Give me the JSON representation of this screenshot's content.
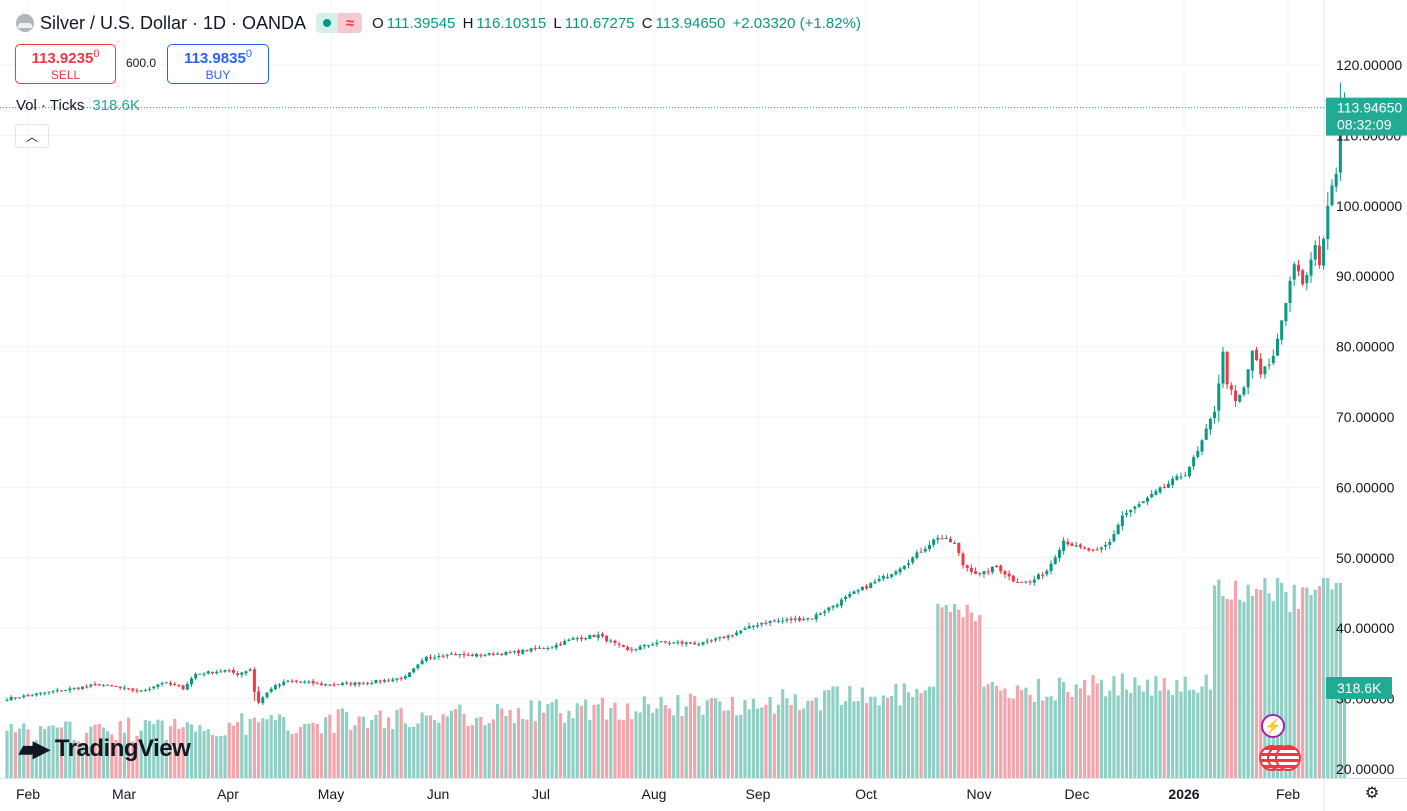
{
  "header": {
    "symbol_title": "Silver / U.S. Dollar · 1D · OANDA",
    "symbol_icon": "silver-cloud-icon",
    "market_status_icon": "market-open-dot-icon",
    "data_feed_icon": "wave-icon",
    "ohlc": {
      "o_label": "O",
      "o": "111.39545",
      "h_label": "H",
      "h": "116.10315",
      "l_label": "L",
      "l": "110.67275",
      "c_label": "C",
      "c": "113.94650",
      "change": "+2.03320 (+1.82%)"
    }
  },
  "trade": {
    "sell_price": "113.9235",
    "sell_sup": "0",
    "sell_label": "SELL",
    "buy_price": "113.9835",
    "buy_sup": "0",
    "buy_label": "BUY",
    "spread": "600.0"
  },
  "volume_legend": {
    "label": "Vol · Ticks",
    "value": "318.6K"
  },
  "collapse_icon": "chevron-up-icon",
  "logo_text": "TradingView",
  "price_axis": {
    "ticks": [
      "120.00000",
      "110.00000",
      "100.00000",
      "90.00000",
      "80.00000",
      "70.00000",
      "60.00000",
      "50.00000",
      "40.00000",
      "30.00000",
      "20.00000"
    ],
    "tick_values": [
      120,
      110,
      100,
      90,
      80,
      70,
      60,
      50,
      40,
      30,
      20
    ],
    "last_price": "113.94650",
    "countdown": "08:32:09",
    "volume_badge": "318.6K"
  },
  "time_axis": {
    "labels": [
      "Feb",
      "Mar",
      "Apr",
      "May",
      "Jun",
      "Jul",
      "Aug",
      "Sep",
      "Oct",
      "Nov",
      "Dec",
      "2026",
      "Feb"
    ],
    "bold": [
      false,
      false,
      false,
      false,
      false,
      false,
      false,
      false,
      false,
      false,
      false,
      true,
      false
    ]
  },
  "colors": {
    "up": "#089981",
    "down": "#f23645",
    "vol_up": "#8fcfc4",
    "vol_down": "#f4a4ab",
    "grid": "#f0f3fa",
    "badge": "#22ab94"
  },
  "chart_data": {
    "type": "candlestick",
    "title": "Silver / U.S. Dollar · 1D · OANDA",
    "ylim": [
      20,
      122
    ],
    "keypoints": [
      {
        "t": 0,
        "close": 30.0
      },
      {
        "t": 22,
        "close": 32.0
      },
      {
        "t": 32,
        "close": 31.0
      },
      {
        "t": 37,
        "close": 32.3
      },
      {
        "t": 42,
        "close": 31.5
      },
      {
        "t": 45,
        "close": 33.5
      },
      {
        "t": 52,
        "close": 34.0
      },
      {
        "t": 55,
        "close": 33.5
      },
      {
        "t": 58,
        "close": 34.2
      },
      {
        "t": 59,
        "close": 31.0
      },
      {
        "t": 60,
        "close": 29.5
      },
      {
        "t": 63,
        "close": 31.5
      },
      {
        "t": 67,
        "close": 32.5
      },
      {
        "t": 73,
        "close": 32.2
      },
      {
        "t": 75,
        "close": 32.0
      },
      {
        "t": 85,
        "close": 32.2
      },
      {
        "t": 95,
        "close": 33.0
      },
      {
        "t": 100,
        "close": 35.8
      },
      {
        "t": 105,
        "close": 36.4
      },
      {
        "t": 110,
        "close": 36.1
      },
      {
        "t": 120,
        "close": 36.5
      },
      {
        "t": 130,
        "close": 37.4
      },
      {
        "t": 135,
        "close": 38.5
      },
      {
        "t": 141,
        "close": 39.0
      },
      {
        "t": 148,
        "close": 36.8
      },
      {
        "t": 155,
        "close": 38.0
      },
      {
        "t": 166,
        "close": 37.8
      },
      {
        "t": 172,
        "close": 38.9
      },
      {
        "t": 180,
        "close": 40.8
      },
      {
        "t": 187,
        "close": 41.2
      },
      {
        "t": 192,
        "close": 41.5
      },
      {
        "t": 197,
        "close": 43.2
      },
      {
        "t": 202,
        "close": 45.0
      },
      {
        "t": 210,
        "close": 47.5
      },
      {
        "t": 215,
        "close": 49.5
      },
      {
        "t": 222,
        "close": 53.0
      },
      {
        "t": 226,
        "close": 52.0
      },
      {
        "t": 228,
        "close": 49.0
      },
      {
        "t": 232,
        "close": 47.5
      },
      {
        "t": 236,
        "close": 48.8
      },
      {
        "t": 240,
        "close": 46.8
      },
      {
        "t": 244,
        "close": 46.5
      },
      {
        "t": 248,
        "close": 48.2
      },
      {
        "t": 252,
        "close": 52.5
      },
      {
        "t": 255,
        "close": 51.5
      },
      {
        "t": 260,
        "close": 50.8
      },
      {
        "t": 263,
        "close": 52.2
      },
      {
        "t": 266,
        "close": 56.0
      },
      {
        "t": 270,
        "close": 57.5
      },
      {
        "t": 273,
        "close": 58.8
      },
      {
        "t": 277,
        "close": 60.5
      },
      {
        "t": 281,
        "close": 62.0
      },
      {
        "t": 284,
        "close": 65.0
      },
      {
        "t": 288,
        "close": 71.0
      },
      {
        "t": 290,
        "close": 79.0
      },
      {
        "t": 291,
        "close": 75.0
      },
      {
        "t": 293,
        "close": 72.0
      },
      {
        "t": 295,
        "close": 74.0
      },
      {
        "t": 297,
        "close": 79.5
      },
      {
        "t": 299,
        "close": 76.0
      },
      {
        "t": 302,
        "close": 78.5
      },
      {
        "t": 305,
        "close": 86.5
      },
      {
        "t": 307,
        "close": 92.0
      },
      {
        "t": 309,
        "close": 88.5
      },
      {
        "t": 312,
        "close": 94.0
      },
      {
        "t": 313,
        "close": 92.0
      },
      {
        "t": 314,
        "close": 95.5
      },
      {
        "t": 316,
        "close": 103.5
      },
      {
        "t": 317,
        "close": 105.0
      },
      {
        "t": 318,
        "close": 112.5
      },
      {
        "t": 319,
        "close": 113.9465
      }
    ],
    "last_candle": {
      "open": 111.39545,
      "high": 116.10315,
      "low": 110.67275,
      "close": 113.9465,
      "volume": "318.6K"
    }
  }
}
